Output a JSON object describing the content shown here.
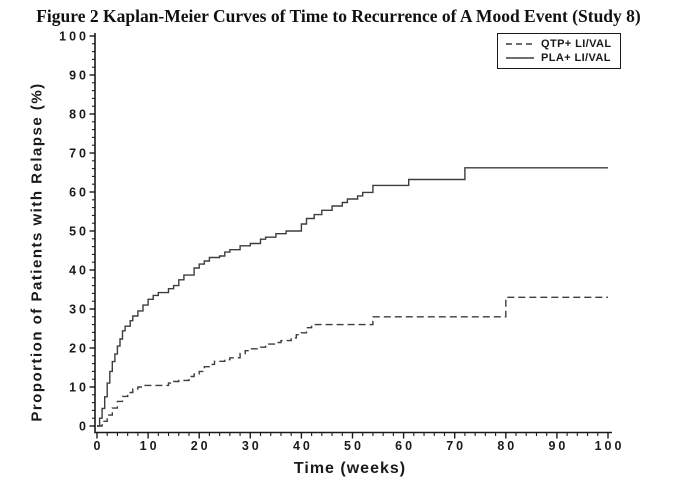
{
  "figure": {
    "title": "Figure 2 Kaplan-Meier Curves of Time to Recurrence of A Mood Event (Study 8)"
  },
  "chart_data": {
    "type": "line",
    "subtype": "kaplan-meier-step",
    "title": "Figure 2 Kaplan-Meier Curves of Time to Recurrence of A Mood Event (Study 8)",
    "xlabel": "Time (weeks)",
    "ylabel": "Proportion of Patients with Relapse (%)",
    "xlim": [
      0,
      100
    ],
    "ylim": [
      0,
      100
    ],
    "x_major_ticks": [
      0,
      10,
      20,
      30,
      40,
      50,
      60,
      70,
      80,
      90,
      100
    ],
    "y_major_ticks": [
      0,
      10,
      20,
      30,
      40,
      50,
      60,
      70,
      80,
      90,
      100
    ],
    "minor_tick_step": 2,
    "grid": "off",
    "legend_position": "top-right",
    "axis_color": "#1a1a1a",
    "curve_color": "#3d3d3d",
    "series": [
      {
        "name": "QTP+ LI/VAL",
        "line_style": "dashed",
        "points": [
          [
            0,
            0
          ],
          [
            1,
            1.2
          ],
          [
            2,
            2.8
          ],
          [
            3,
            4.6
          ],
          [
            4,
            6.3
          ],
          [
            5,
            7.6
          ],
          [
            6,
            8.6
          ],
          [
            7,
            9.5
          ],
          [
            8,
            10
          ],
          [
            9,
            10.4
          ],
          [
            14,
            11
          ],
          [
            15,
            11.4
          ],
          [
            16,
            11.7
          ],
          [
            18,
            12.7
          ],
          [
            19,
            13.3
          ],
          [
            20,
            14
          ],
          [
            21,
            15.2
          ],
          [
            22,
            15.8
          ],
          [
            23,
            16.6
          ],
          [
            25,
            17
          ],
          [
            26,
            17.5
          ],
          [
            28,
            18.6
          ],
          [
            29,
            19.3
          ],
          [
            30,
            19.8
          ],
          [
            32,
            20.2
          ],
          [
            33,
            21
          ],
          [
            35,
            21.4
          ],
          [
            36,
            21.9
          ],
          [
            38,
            22.6
          ],
          [
            39,
            23.4
          ],
          [
            40,
            23.9
          ],
          [
            41,
            25.2
          ],
          [
            42,
            26
          ],
          [
            54,
            28
          ],
          [
            80,
            33
          ],
          [
            100,
            33
          ]
        ]
      },
      {
        "name": "PLA+ LI/VAL",
        "line_style": "solid",
        "points": [
          [
            0,
            0
          ],
          [
            0.5,
            2
          ],
          [
            1,
            4.5
          ],
          [
            1.5,
            7.5
          ],
          [
            2,
            11
          ],
          [
            2.5,
            14
          ],
          [
            3,
            16.5
          ],
          [
            3.5,
            18.5
          ],
          [
            4,
            20.5
          ],
          [
            4.5,
            22.3
          ],
          [
            5,
            24.4
          ],
          [
            5.5,
            25.6
          ],
          [
            6.5,
            27
          ],
          [
            7,
            28.2
          ],
          [
            8,
            29.5
          ],
          [
            9,
            31
          ],
          [
            10,
            32.5
          ],
          [
            11,
            33.5
          ],
          [
            12,
            34.2
          ],
          [
            14,
            35.2
          ],
          [
            15,
            36
          ],
          [
            16,
            37.5
          ],
          [
            17,
            38.7
          ],
          [
            19,
            40.5
          ],
          [
            20,
            41.5
          ],
          [
            21,
            42.3
          ],
          [
            22,
            43.2
          ],
          [
            24,
            43.6
          ],
          [
            25,
            44.6
          ],
          [
            26,
            45.2
          ],
          [
            28,
            46.2
          ],
          [
            30,
            46.8
          ],
          [
            32,
            47.9
          ],
          [
            33,
            48.4
          ],
          [
            35,
            49.3
          ],
          [
            37,
            50
          ],
          [
            40,
            51.8
          ],
          [
            41,
            53.2
          ],
          [
            42.5,
            54.2
          ],
          [
            44,
            55.3
          ],
          [
            46,
            56.4
          ],
          [
            48,
            57.3
          ],
          [
            49,
            58.2
          ],
          [
            51,
            59
          ],
          [
            52,
            59.9
          ],
          [
            54,
            61.7
          ],
          [
            61,
            63.2
          ],
          [
            72,
            66.2
          ],
          [
            100,
            66.2
          ]
        ]
      }
    ]
  }
}
